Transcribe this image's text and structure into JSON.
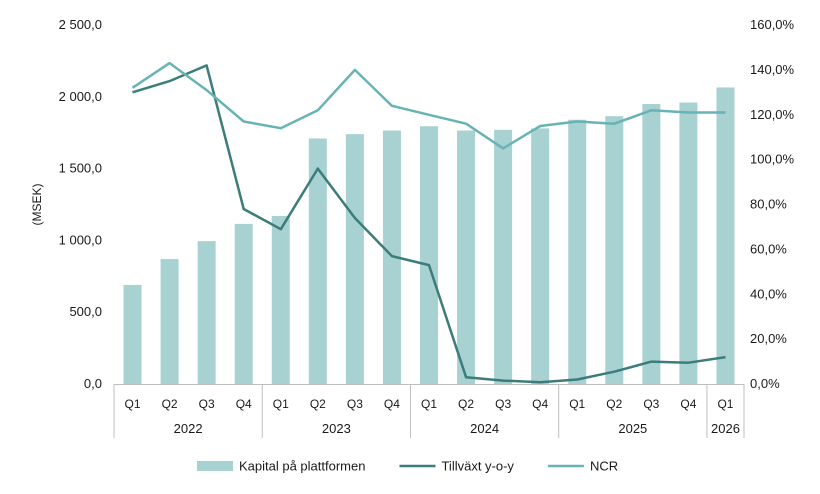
{
  "chart_data": {
    "type": "bar",
    "categories": [
      "Q1",
      "Q2",
      "Q3",
      "Q4",
      "Q1",
      "Q2",
      "Q3",
      "Q4",
      "Q1",
      "Q2",
      "Q3",
      "Q4",
      "Q1",
      "Q2",
      "Q3",
      "Q4",
      "Q1"
    ],
    "years": [
      {
        "label": "2022",
        "count": 4
      },
      {
        "label": "2023",
        "count": 4
      },
      {
        "label": "2024",
        "count": 4
      },
      {
        "label": "2025",
        "count": 4
      },
      {
        "label": "2026",
        "count": 1
      }
    ],
    "ylabel": "(MSEK)",
    "ylim": [
      0,
      2500
    ],
    "y_ticks": [
      "0,0",
      "500,0",
      "1 000,0",
      "1 500,0",
      "2 000,0",
      "2 500,0"
    ],
    "y2lim": [
      0,
      160
    ],
    "y2_ticks": [
      "0,0%",
      "20,0%",
      "40,0%",
      "60,0%",
      "80,0%",
      "100,0%",
      "120,0%",
      "140,0%",
      "160,0%"
    ],
    "series": [
      {
        "name": "Kapital på plattformen",
        "type": "bar",
        "axis": "left",
        "color": "#a8d1d1",
        "values": [
          690,
          870,
          995,
          1115,
          1170,
          1710,
          1740,
          1765,
          1795,
          1765,
          1770,
          1780,
          1840,
          1865,
          1950,
          1960,
          2065
        ]
      },
      {
        "name": "Tillväxt y-o-y",
        "type": "line",
        "axis": "right",
        "color": "#3b7d7b",
        "values": [
          130,
          135,
          142,
          78,
          69,
          96,
          74,
          57,
          53,
          3,
          1.5,
          0.8,
          2,
          5.5,
          10,
          9.5,
          12
        ]
      },
      {
        "name": "NCR",
        "type": "line",
        "axis": "right",
        "color": "#68b3b5",
        "values": [
          132,
          143,
          131,
          117,
          114,
          122,
          140,
          124,
          120,
          116,
          105,
          115,
          117,
          116,
          122,
          121,
          121
        ]
      }
    ],
    "legend_position": "bottom",
    "grid": false
  }
}
